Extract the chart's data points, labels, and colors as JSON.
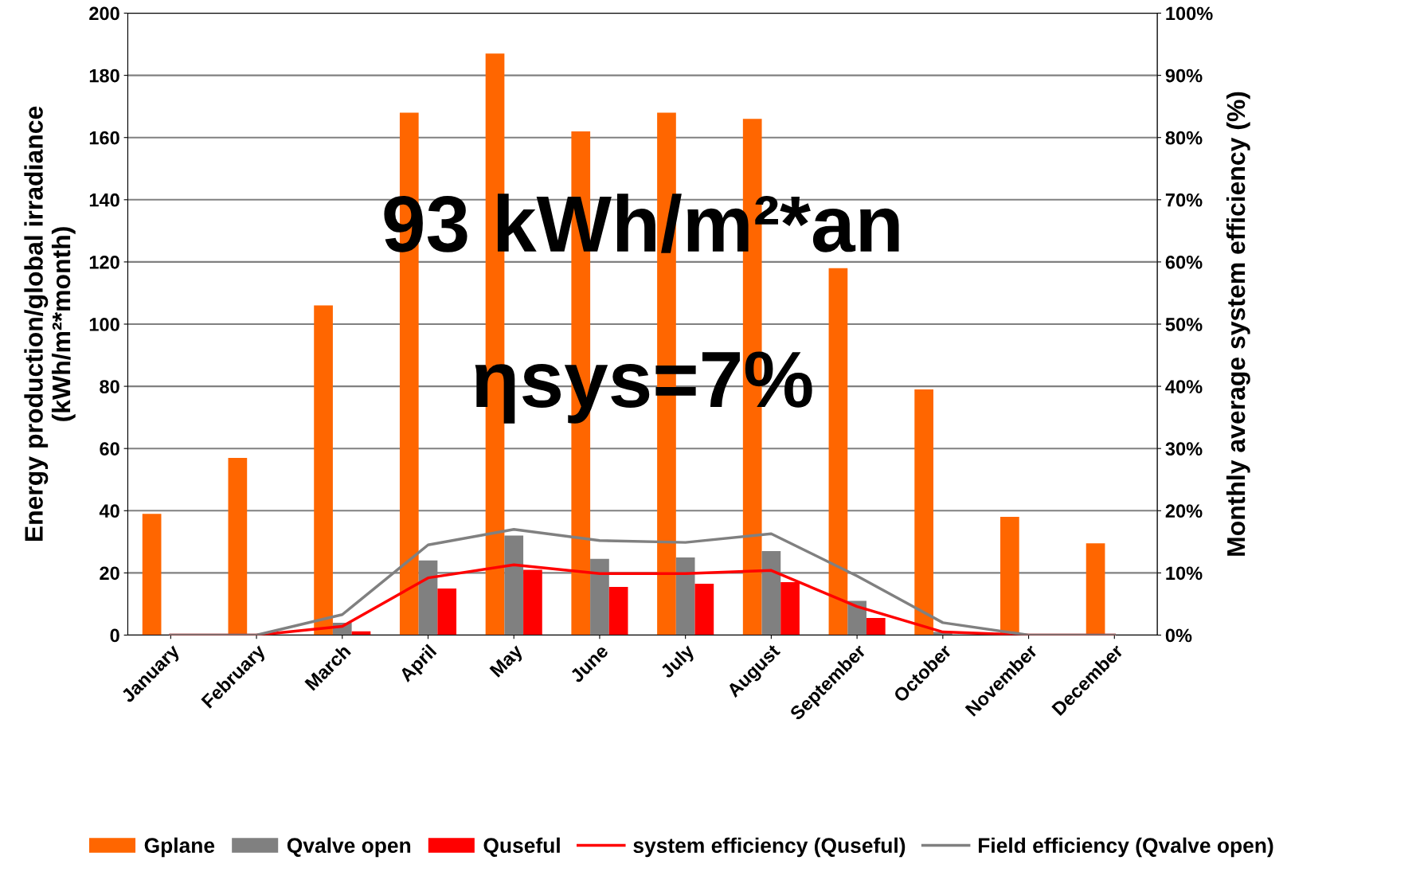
{
  "chart_data": {
    "type": "bar",
    "categories": [
      "January",
      "February",
      "March",
      "April",
      "May",
      "June",
      "July",
      "August",
      "September",
      "October",
      "November",
      "December"
    ],
    "series": [
      {
        "name": "Gplane",
        "color": "#ff6600",
        "values": [
          39,
          57,
          106,
          168,
          187,
          162,
          168,
          166,
          118,
          79,
          38,
          29.5
        ]
      },
      {
        "name": "Qvalve open",
        "color": "#808080",
        "values": [
          0,
          0,
          4,
          24,
          32,
          24.5,
          25,
          27,
          11,
          1,
          0,
          0
        ]
      },
      {
        "name": "Quseful",
        "color": "#ff0000",
        "values": [
          0,
          0,
          1.2,
          15,
          21,
          15.5,
          16.5,
          17,
          5.5,
          null,
          0,
          0
        ]
      },
      {
        "name": "system efficiency (Quseful)",
        "type": "line",
        "axis": "y2",
        "color": "#ff0000",
        "values": [
          0,
          0,
          1.4,
          9.2,
          11.3,
          9.9,
          9.9,
          10.4,
          4.6,
          0.5,
          0,
          0
        ]
      },
      {
        "name": "Field efficiency (Qvalve open)",
        "type": "line",
        "axis": "y2",
        "color": "#808080",
        "values": [
          0,
          0,
          3.3,
          14.5,
          17,
          15.2,
          14.9,
          16.3,
          9.5,
          2,
          0,
          0
        ]
      }
    ],
    "ylabel": "Energy production/global irradiance\n(kWh/m²*month)",
    "y2label": "Monthly average system efficiency (%)",
    "ylim": [
      0,
      200
    ],
    "yticks": [
      0,
      20,
      40,
      60,
      80,
      100,
      120,
      140,
      160,
      180,
      200
    ],
    "y2lim": [
      0,
      100
    ],
    "y2ticks": [
      {
        "value": 0,
        "label": "0%"
      },
      {
        "value": 10,
        "label": "10%"
      },
      {
        "value": 20,
        "label": "20%"
      },
      {
        "value": 30,
        "label": "30%"
      },
      {
        "value": 40,
        "label": "40%"
      },
      {
        "value": 50,
        "label": "50%"
      },
      {
        "value": 60,
        "label": "60%"
      },
      {
        "value": 70,
        "label": "70%"
      },
      {
        "value": 80,
        "label": "80%"
      },
      {
        "value": 90,
        "label": "90%"
      },
      {
        "value": 100,
        "label": "100%"
      }
    ],
    "annotations": [
      "93 kWh/m²*an",
      "ηsys=7%"
    ],
    "grid": "y",
    "legend": "bottom",
    "marker": "none",
    "line_style": "solid"
  }
}
